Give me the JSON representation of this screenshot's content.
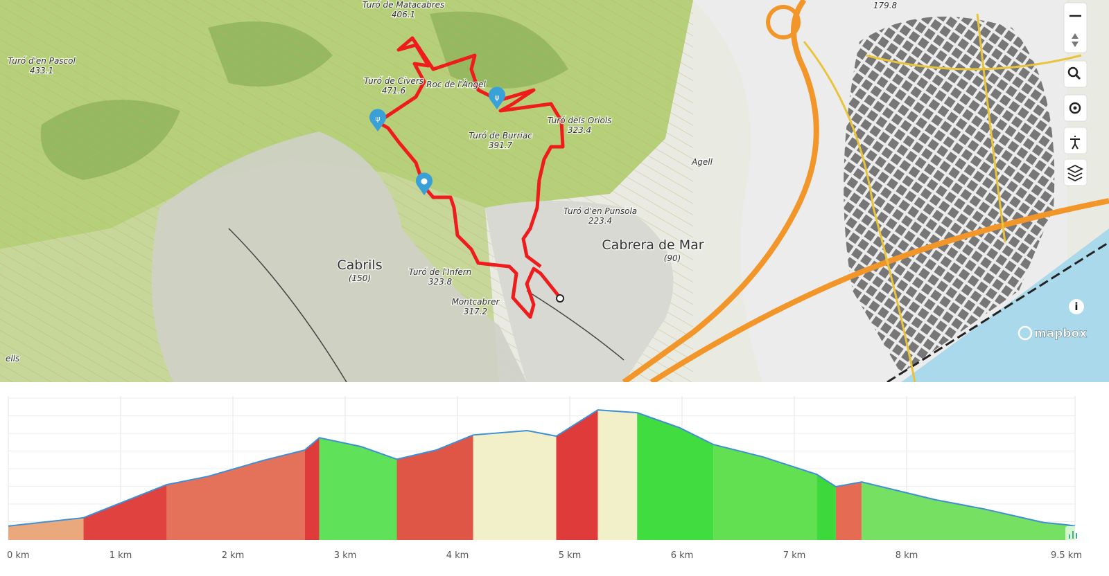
{
  "map": {
    "labels": [
      {
        "name": "Turó de Matacabres",
        "elevation": 406.1
      },
      {
        "name": "Turó d'en Pascol",
        "elevation": 433.1
      },
      {
        "name": "Turó de Civers",
        "elevation": 471.6
      },
      {
        "name": "Roc de l'Àngel"
      },
      {
        "name": "Turó dels Oriols",
        "elevation": 323.4
      },
      {
        "name": "Turó de Burriac",
        "elevation": 391.7
      },
      {
        "name": "Agell"
      },
      {
        "name": "Turó d'en Punsola",
        "elevation": 223.4
      },
      {
        "name": "Cabrera de Mar",
        "elevation": "(90)"
      },
      {
        "name": "Cabrils",
        "elevation": "(150)"
      },
      {
        "name": "Turó de l'Infern",
        "elevation": 323.8
      },
      {
        "name": "Montcabrer",
        "elevation": 317.2
      },
      {
        "elevation": 179.8
      },
      {
        "name": "ells"
      }
    ],
    "attribution": "mapbox"
  },
  "chart_data": {
    "type": "area",
    "x": [
      0,
      0.67,
      1.41,
      1.78,
      2.27,
      2.64,
      2.77,
      3.14,
      3.46,
      3.81,
      4.14,
      4.62,
      4.88,
      5.25,
      5.6,
      5.98,
      6.28,
      6.72,
      7.2,
      7.37,
      7.6,
      7.95,
      8.26,
      8.69,
      9.22,
      9.43,
      9.5
    ],
    "values": [
      100,
      121,
      204,
      225,
      265,
      291,
      322,
      300,
      268,
      291,
      329,
      340,
      326,
      392,
      385,
      347,
      305,
      274,
      230,
      199,
      211,
      187,
      166,
      143,
      109,
      103,
      100
    ],
    "color": "#3f8fd6",
    "segments": [
      {
        "start": 0,
        "end": 0.67,
        "color": "#eaa97c"
      },
      {
        "start": 0.67,
        "end": 1.41,
        "color": "#e0433f"
      },
      {
        "start": 1.41,
        "end": 2.64,
        "color": "#e4715a"
      },
      {
        "start": 2.64,
        "end": 2.77,
        "color": "#df3b3a"
      },
      {
        "start": 2.77,
        "end": 3.46,
        "color": "#5fe159"
      },
      {
        "start": 3.46,
        "end": 4.14,
        "color": "#e05646"
      },
      {
        "start": 4.14,
        "end": 4.88,
        "color": "#f1f0c9"
      },
      {
        "start": 4.88,
        "end": 5.25,
        "color": "#df3b3a"
      },
      {
        "start": 5.25,
        "end": 5.6,
        "color": "#f1f0c9"
      },
      {
        "start": 5.6,
        "end": 6.28,
        "color": "#40dc40"
      },
      {
        "start": 6.28,
        "end": 7.2,
        "color": "#62e052"
      },
      {
        "start": 7.2,
        "end": 7.37,
        "color": "#3cd83c"
      },
      {
        "start": 7.37,
        "end": 7.6,
        "color": "#e56b52"
      },
      {
        "start": 7.6,
        "end": 9.5,
        "color": "#76e062"
      }
    ],
    "xlim": [
      0,
      9.5
    ],
    "ylim": [
      65,
      427
    ],
    "xticks": [
      {
        "value": 0,
        "label": "0 km"
      },
      {
        "value": 1,
        "label": "1 km"
      },
      {
        "value": 2,
        "label": "2 km"
      },
      {
        "value": 3,
        "label": "3 km"
      },
      {
        "value": 4,
        "label": "4 km"
      },
      {
        "value": 5,
        "label": "5 km"
      },
      {
        "value": 6,
        "label": "6 km"
      },
      {
        "value": 7,
        "label": "7 km"
      },
      {
        "value": 8,
        "label": "8 km"
      },
      {
        "value": 9.5,
        "label": "9.5 km"
      }
    ],
    "grid": true
  }
}
